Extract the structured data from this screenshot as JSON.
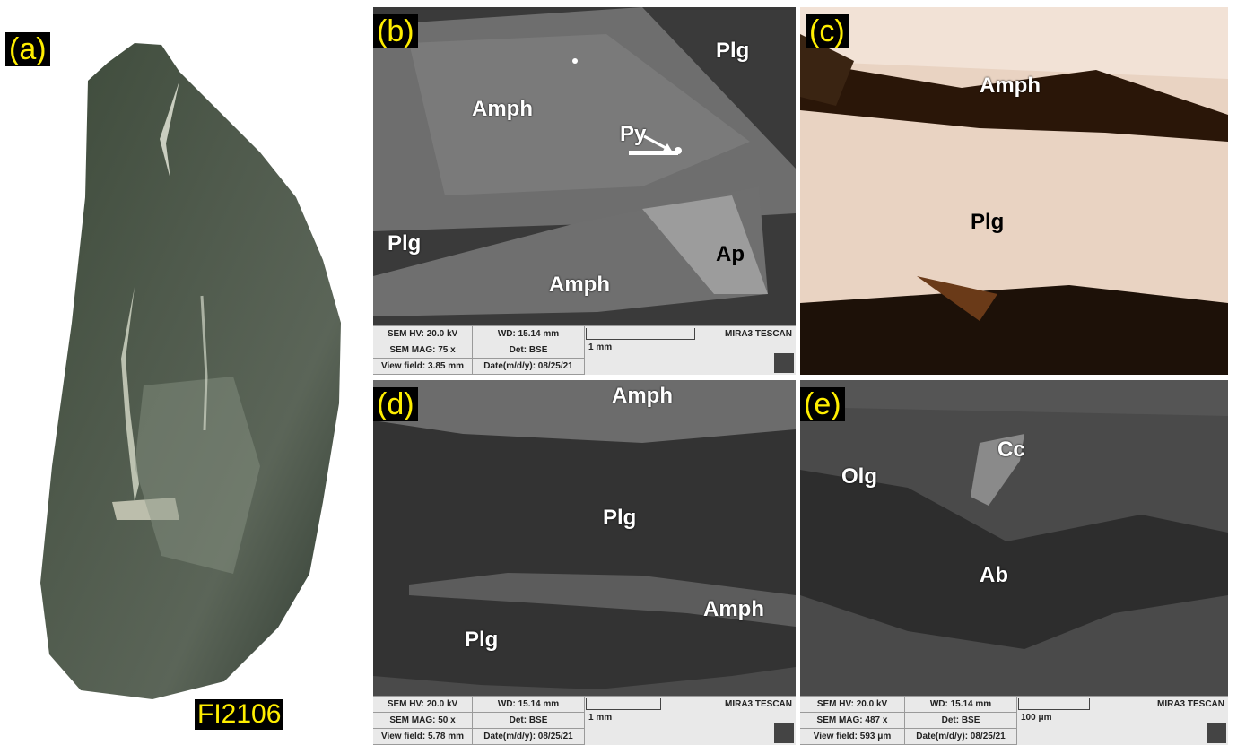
{
  "panel_a": {
    "label": "(a)",
    "sample_id": "FI2106"
  },
  "panel_b": {
    "label": "(b)",
    "minerals": {
      "plg_top": "Plg",
      "amph_top": "Amph",
      "py": "Py",
      "plg_left": "Plg",
      "ap": "Ap",
      "amph_bottom": "Amph"
    },
    "info": {
      "hv": "SEM HV: 20.0 kV",
      "wd": "WD: 15.14 mm",
      "mag": "SEM MAG: 75 x",
      "det": "Det: BSE",
      "view": "View field: 3.85 mm",
      "date": "Date(m/d/y): 08/25/21",
      "scale": "1 mm",
      "brand": "MIRA3 TESCAN"
    }
  },
  "panel_c": {
    "label": "(c)",
    "minerals": {
      "amph": "Amph",
      "plg": "Plg"
    }
  },
  "panel_d": {
    "label": "(d)",
    "minerals": {
      "amph_top": "Amph",
      "plg_mid": "Plg",
      "amph_right": "Amph",
      "plg_bottom": "Plg"
    },
    "info": {
      "hv": "SEM HV: 20.0 kV",
      "wd": "WD: 15.14 mm",
      "mag": "SEM MAG: 50 x",
      "det": "Det: BSE",
      "view": "View field: 5.78 mm",
      "date": "Date(m/d/y): 08/25/21",
      "scale": "1 mm",
      "brand": "MIRA3 TESCAN"
    }
  },
  "panel_e": {
    "label": "(e)",
    "minerals": {
      "olg": "Olg",
      "cc": "Cc",
      "ab": "Ab"
    },
    "info": {
      "hv": "SEM HV: 20.0 kV",
      "wd": "WD: 15.14 mm",
      "mag": "SEM MAG: 487 x",
      "det": "Det: BSE",
      "view": "View field: 593 μm",
      "date": "Date(m/d/y): 08/25/21",
      "scale": "100 μm",
      "brand": "MIRA3 TESCAN"
    }
  }
}
